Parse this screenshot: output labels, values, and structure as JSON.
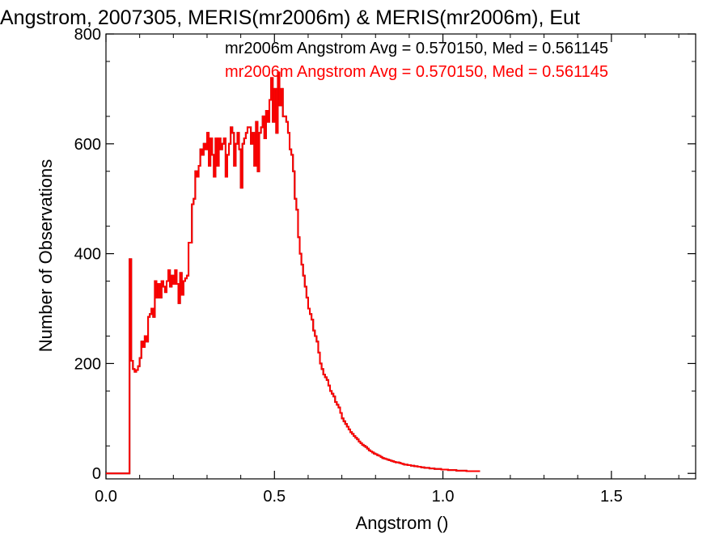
{
  "chart_data": {
    "type": "bar",
    "title": "Angstrom, 2007305, MERIS(mr2006m) & MERIS(mr2006m), Eut",
    "xlabel": "Angstrom ()",
    "ylabel": "Number of Observations",
    "xlim": [
      0.0,
      1.75
    ],
    "ylim": [
      -10,
      800
    ],
    "xticks": [
      "0.0",
      "0.5",
      "1.0",
      "1.5"
    ],
    "yticks": [
      "0",
      "200",
      "400",
      "600",
      "800"
    ],
    "grid": false,
    "histogram_style": "step",
    "series": [
      {
        "name": "mr2006m",
        "color": "#000000",
        "stats_label": "mr2006m Angstrom Avg = 0.570150, Med = 0.561145"
      },
      {
        "name": "mr2006m",
        "color": "#ff0000",
        "stats_label": "mr2006m Angstrom Avg = 0.570150, Med = 0.561145"
      }
    ],
    "bin_width": 0.005,
    "bins_start": 0.0,
    "values": [
      0,
      0,
      0,
      0,
      0,
      0,
      0,
      0,
      0,
      0,
      0,
      0,
      0,
      0,
      390,
      205,
      190,
      185,
      188,
      195,
      210,
      240,
      230,
      250,
      240,
      285,
      290,
      300,
      285,
      350,
      320,
      345,
      320,
      350,
      340,
      330,
      350,
      370,
      340,
      360,
      345,
      370,
      345,
      310,
      365,
      325,
      350,
      355,
      360,
      420,
      420,
      490,
      500,
      550,
      540,
      560,
      590,
      580,
      600,
      590,
      620,
      560,
      610,
      580,
      540,
      610,
      560,
      610,
      590,
      600,
      610,
      540,
      580,
      600,
      630,
      620,
      560,
      600,
      620,
      590,
      520,
      600,
      610,
      620,
      630,
      630,
      600,
      620,
      560,
      640,
      550,
      620,
      630,
      650,
      610,
      660,
      640,
      680,
      720,
      640,
      700,
      620,
      730,
      670,
      700,
      650,
      650,
      640,
      620,
      590,
      580,
      550,
      500,
      480,
      430,
      400,
      380,
      360,
      340,
      320,
      300,
      290,
      280,
      260,
      250,
      240,
      220,
      200,
      190,
      180,
      175,
      170,
      160,
      150,
      145,
      140,
      130,
      125,
      120,
      110,
      100,
      95,
      90,
      85,
      80,
      75,
      72,
      68,
      65,
      62,
      58,
      55,
      52,
      50,
      48,
      45,
      42,
      40,
      38,
      36,
      35,
      33,
      32,
      30,
      28,
      27,
      26,
      25,
      24,
      23,
      22,
      21,
      20,
      20,
      19,
      18,
      17,
      16,
      16,
      15,
      15,
      14,
      14,
      13,
      13,
      12,
      12,
      11,
      11,
      10,
      10,
      10,
      9,
      9,
      9,
      8,
      8,
      8,
      8,
      7,
      7,
      7,
      7,
      6,
      6,
      6,
      6,
      6,
      5,
      5,
      5,
      5,
      5,
      5,
      4,
      4,
      4,
      4,
      4,
      4,
      4,
      4
    ]
  }
}
